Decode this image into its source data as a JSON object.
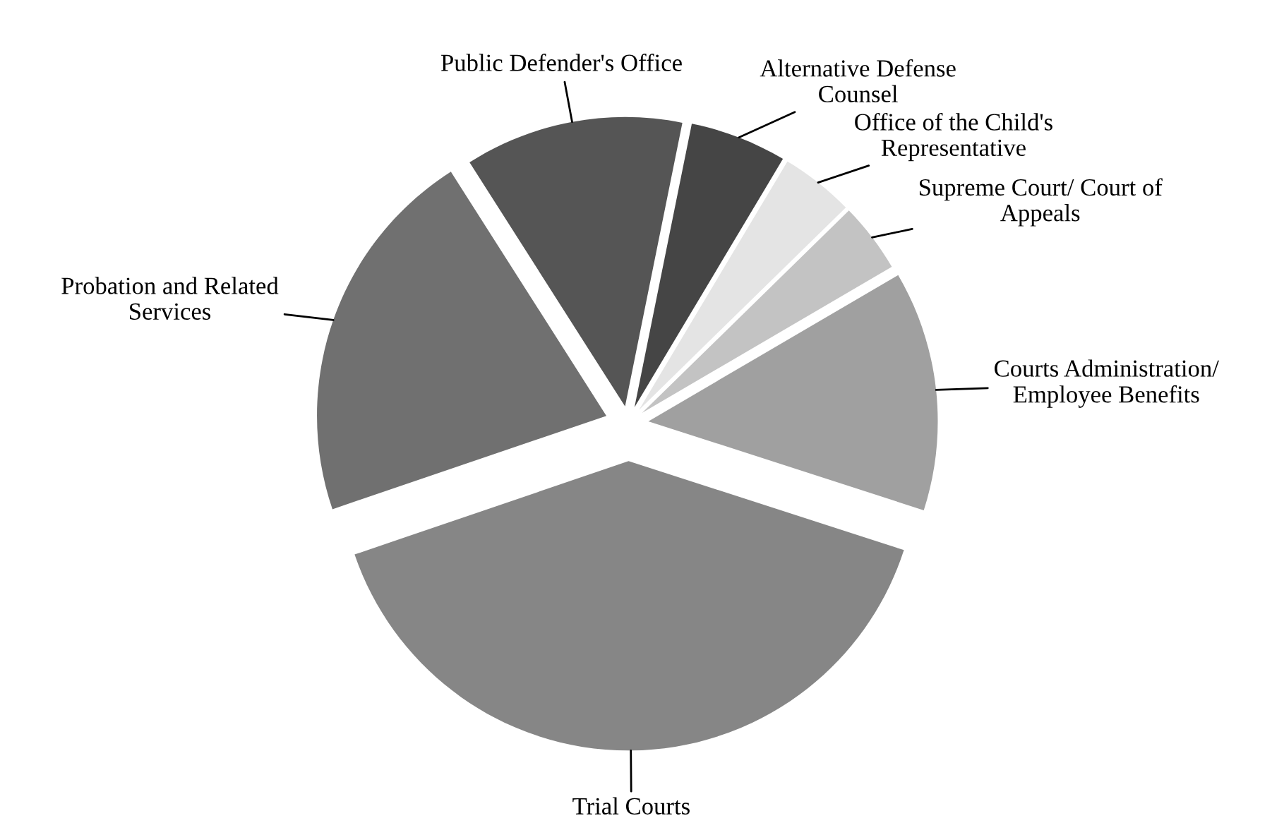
{
  "chart_data": {
    "type": "pie",
    "categories": [
      "Public Defender's Office",
      "Alternative Defense\nCounsel",
      "Office of the Child's\nRepresentative",
      "Supreme Court/ Court of\nAppeals",
      "Courts Administration/\nEmployee Benefits",
      "Trial Courts",
      "Probation and Related\nServices"
    ],
    "values": [
      12.2,
      5.4,
      4.1,
      3.9,
      13.4,
      39.8,
      21.2
    ],
    "colors": [
      "#555555",
      "#454545",
      "#e4e4e4",
      "#c3c3c3",
      "#a0a0a0",
      "#868686",
      "#707070"
    ]
  }
}
